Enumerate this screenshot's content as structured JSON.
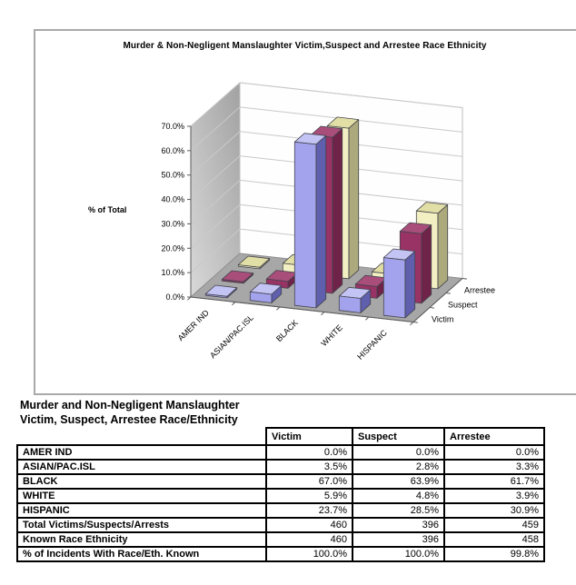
{
  "chart": {
    "title": "Murder & Non-Negligent Manslaughter Victim,Suspect and Arrestee Race Ethnicity"
  },
  "chart_data": {
    "type": "bar",
    "variant": "3d-column",
    "title": "Murder & Non-Negligent Manslaughter Victim,Suspect and Arrestee Race Ethnicity",
    "ylabel": "% of Total",
    "ylim": [
      0,
      70
    ],
    "ytick_step": 10,
    "ytick_labels": [
      "0.0%",
      "10.0%",
      "20.0%",
      "30.0%",
      "40.0%",
      "50.0%",
      "60.0%",
      "70.0%"
    ],
    "grid": true,
    "legend_position": "depth-axis-right",
    "categories": [
      "AMER IND",
      "ASIAN/PAC.ISL",
      "BLACK",
      "WHITE",
      "HISPANIC"
    ],
    "series": [
      {
        "name": "Victim",
        "values": [
          0.0,
          3.5,
          67.0,
          5.9,
          23.7
        ],
        "color": "#a3a3ed",
        "side": "#5f5fae",
        "top": "#c3c3f4"
      },
      {
        "name": "Suspect",
        "values": [
          0.0,
          2.8,
          63.9,
          4.8,
          28.5
        ],
        "color": "#993366",
        "side": "#6f2349",
        "top": "#a94e7b"
      },
      {
        "name": "Arrestee",
        "values": [
          0.0,
          3.3,
          61.7,
          3.9,
          30.9
        ],
        "color": "#f2efc2",
        "side": "#aca97d",
        "top": "#e2dfa6"
      }
    ],
    "colors": {
      "floor": "#a7a7a7",
      "left_wall_light": "#d8d8d8",
      "left_wall_dark": "#a2a2a2",
      "back_wall": "#fefefe",
      "gridline": "#c9c9c9",
      "axis": "#5a5a5a",
      "bar_outline": "#44444c"
    }
  },
  "table": {
    "title_line1": "Murder and Non-Negligent Manslaughter",
    "title_line2": "Victim, Suspect, Arrestee Race/Ethnicity",
    "columns": [
      "Victim",
      "Suspect",
      "Arrestee"
    ],
    "rows": [
      {
        "label": "AMER IND",
        "values": [
          "0.0%",
          "0.0%",
          "0.0%"
        ]
      },
      {
        "label": "ASIAN/PAC.ISL",
        "values": [
          "3.5%",
          "2.8%",
          "3.3%"
        ]
      },
      {
        "label": "BLACK",
        "values": [
          "67.0%",
          "63.9%",
          "61.7%"
        ]
      },
      {
        "label": "WHITE",
        "values": [
          "5.9%",
          "4.8%",
          "3.9%"
        ]
      },
      {
        "label": "HISPANIC",
        "values": [
          "23.7%",
          "28.5%",
          "30.9%"
        ]
      },
      {
        "label": "Total Victims/Suspects/Arrests",
        "values": [
          "460",
          "396",
          "459"
        ]
      },
      {
        "label": "Known Race Ethnicity",
        "values": [
          "460",
          "396",
          "458"
        ]
      },
      {
        "label": "% of Incidents With Race/Eth. Known",
        "values": [
          "100.0%",
          "100.0%",
          "99.8%"
        ]
      }
    ]
  }
}
